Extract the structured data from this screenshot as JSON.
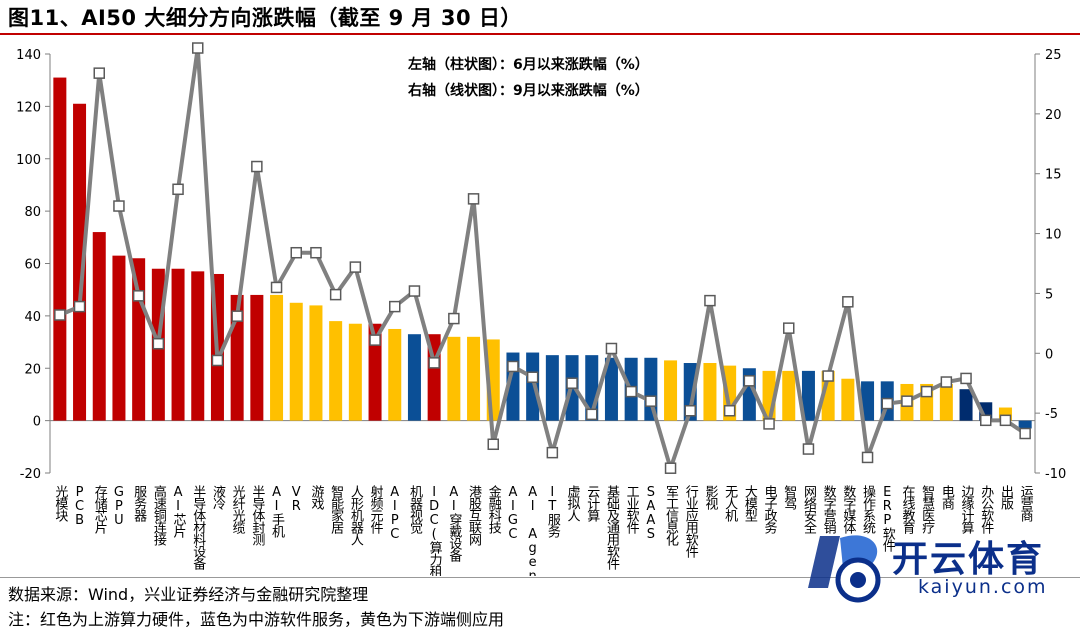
{
  "page": {
    "title": "图11、AI50 大细分方向涨跌幅（截至 9 月 30 日）",
    "source": "数据来源：Wind，兴业证券经济与金融研究院整理",
    "note": "注：红色为上游算力硬件，蓝色为中游软件服务，黄色为下游端侧应用"
  },
  "watermark": {
    "cn": "开云体育",
    "en": "kaiyun.com"
  },
  "colors": {
    "red": "#c00000",
    "blue": "#0b4f96",
    "yellow": "#ffc000",
    "navy": "#002c6e",
    "line": "#808080"
  },
  "chart_data": {
    "type": "bar+line",
    "legend": [
      "左轴（柱状图）：6月以来涨跌幅（%）",
      "右轴（线状图）：9月以来涨跌幅（%）"
    ],
    "left_axis": {
      "min": -20,
      "max": 140,
      "ticks": [
        "-20",
        "0",
        "20",
        "40",
        "60",
        "80",
        "100",
        "120",
        "140"
      ]
    },
    "right_axis": {
      "min": -10,
      "max": 25,
      "ticks": [
        "-10",
        "-5",
        "0",
        "5",
        "10",
        "15",
        "20",
        "25"
      ]
    },
    "categories": [
      "光模块",
      "PCB",
      "存储芯片",
      "GPU",
      "服务器",
      "高速铜连接",
      "AI芯片",
      "半导体材料设备",
      "液冷",
      "光纤光缆",
      "半导体封测",
      "AI手机",
      "VR",
      "游戏",
      "智能家居",
      "人形机器人",
      "射频元件",
      "AIPC",
      "机器视觉",
      "IDC(算力租赁)",
      "AI穿戴设备",
      "港股互联网",
      "金融科技",
      "AIGC",
      "AI Agent",
      "IT服务",
      "虚拟人",
      "云计算",
      "基础及通用软件",
      "工业软件",
      "SAAS",
      "军工信息化",
      "行业应用软件",
      "影视",
      "无人机",
      "大模型",
      "电子政务",
      "智驾",
      "网络安全",
      "数字营销",
      "数字媒体",
      "操作系统",
      "ERP软件",
      "在线教育",
      "智慧医疗",
      "电商",
      "边缘计算",
      "办公软件",
      "出版",
      "运营商"
    ],
    "bar_values": [
      131,
      121,
      72,
      63,
      62,
      58,
      58,
      57,
      56,
      48,
      48,
      48,
      45,
      44,
      38,
      37,
      37,
      35,
      33,
      33,
      32,
      32,
      31,
      26,
      26,
      25,
      25,
      25,
      24,
      24,
      24,
      23,
      22,
      22,
      21,
      20,
      19,
      19,
      19,
      19,
      16,
      15,
      15,
      14,
      14,
      14,
      12,
      7,
      5,
      -3
    ],
    "bar_colors": [
      "red",
      "red",
      "red",
      "red",
      "red",
      "red",
      "red",
      "red",
      "red",
      "red",
      "red",
      "yellow",
      "yellow",
      "yellow",
      "yellow",
      "yellow",
      "red",
      "yellow",
      "blue",
      "red",
      "yellow",
      "yellow",
      "yellow",
      "blue",
      "blue",
      "blue",
      "blue",
      "blue",
      "blue",
      "blue",
      "blue",
      "yellow",
      "blue",
      "yellow",
      "yellow",
      "blue",
      "yellow",
      "yellow",
      "blue",
      "yellow",
      "yellow",
      "blue",
      "blue",
      "yellow",
      "yellow",
      "yellow",
      "navy",
      "navy",
      "yellow",
      "blue"
    ],
    "line_values": [
      3.2,
      3.9,
      23.4,
      12.3,
      4.8,
      0.8,
      13.7,
      25.5,
      -0.6,
      3.1,
      15.6,
      5.5,
      8.4,
      8.4,
      4.9,
      7.2,
      1.1,
      3.9,
      5.2,
      -0.8,
      2.9,
      12.9,
      -7.6,
      -1.1,
      -2.0,
      -8.3,
      -2.5,
      -5.1,
      0.4,
      -3.2,
      -4.0,
      -9.6,
      -4.8,
      4.4,
      -4.8,
      -2.3,
      -5.9,
      2.1,
      -8.0,
      -1.9,
      4.3,
      -8.7,
      -4.2,
      -4.0,
      -3.2,
      -2.4,
      -2.1,
      -5.6,
      -5.6,
      -6.7
    ]
  }
}
